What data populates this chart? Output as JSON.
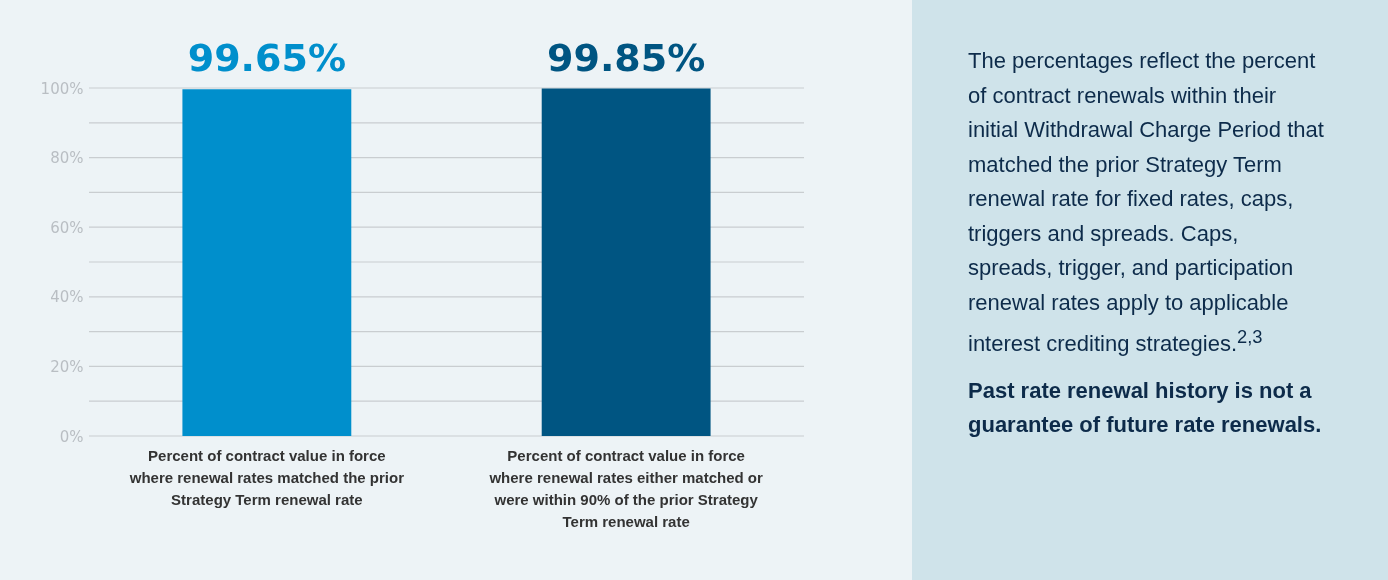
{
  "chart_data": {
    "type": "bar",
    "categories": [
      "Percent of contract value in force where renewal rates matched the prior Strategy Term renewal rate",
      "Percent of contract value in force where renewal rates either matched or were within 90% of the prior Strategy Term renewal rate"
    ],
    "values": [
      99.65,
      99.85
    ],
    "colors": [
      "#008fcc",
      "#005582"
    ],
    "value_labels": [
      "99.65%",
      "99.85%"
    ],
    "ylim": [
      0,
      100
    ],
    "yticks": [
      {
        "value": 0,
        "label": "0%"
      },
      {
        "value": 10,
        "label": null
      },
      {
        "value": 20,
        "label": "20%"
      },
      {
        "value": 30,
        "label": null
      },
      {
        "value": 40,
        "label": "40%"
      },
      {
        "value": 50,
        "label": null
      },
      {
        "value": 60,
        "label": "60%"
      },
      {
        "value": 70,
        "label": null
      },
      {
        "value": 80,
        "label": "80%"
      },
      {
        "value": 90,
        "label": null
      },
      {
        "value": 100,
        "label": "100%"
      }
    ],
    "grid": "y",
    "annotations": [
      "The percentages reflect the percent of contract renewals within their initial Withdrawal Charge Period that matched the prior Strategy Term renewal rate for fixed rates, caps, triggers and spreads. Caps, spreads, trigger, and participation renewal rates apply to applicable interest crediting strategies.$^{2,3}$",
      "Past rate renewal history is not a guarantee of future rate renewals."
    ]
  }
}
